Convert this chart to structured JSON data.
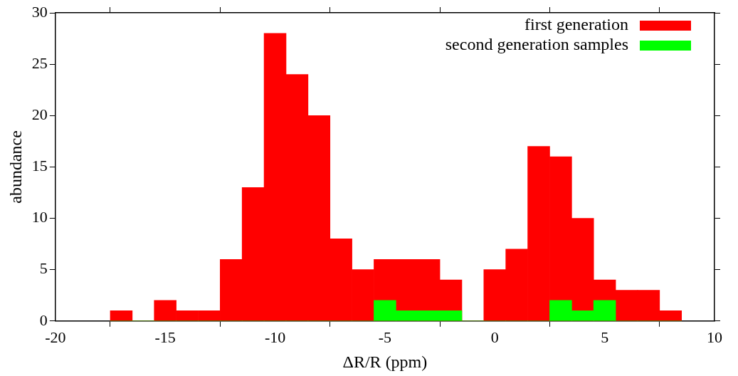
{
  "chart_data": {
    "type": "histogram",
    "xlabel": "ΔR/R (ppm)",
    "ylabel": "abundance",
    "bins": [
      -17.5,
      -16.5,
      -15.5,
      -14.5,
      -13.5,
      -12.5,
      -11.5,
      -10.5,
      -9.5,
      -8.5,
      -7.5,
      -6.5,
      -5.5,
      -4.5,
      -3.5,
      -2.5,
      -1.5,
      -0.5,
      0.5,
      1.5,
      2.5,
      3.5,
      4.5,
      5.5,
      6.5,
      7.5,
      8.5
    ],
    "series": [
      {
        "name": "first generation",
        "color": "#ff0000",
        "values": [
          1,
          0,
          2,
          1,
          1,
          6,
          13,
          28,
          24,
          20,
          8,
          5,
          6,
          6,
          6,
          4,
          0,
          5,
          7,
          17,
          16,
          10,
          4,
          3,
          3,
          1
        ]
      },
      {
        "name": "second generation samples",
        "color": "#00ff00",
        "values": [
          0,
          0,
          0,
          0,
          0,
          0,
          0,
          0,
          0,
          0,
          0,
          0,
          2,
          1,
          1,
          1,
          0,
          0,
          0,
          0,
          2,
          1,
          2,
          0,
          0,
          0
        ]
      }
    ],
    "xlim": [
      -20,
      10
    ],
    "xticks": [
      -20,
      -15,
      -10,
      -5,
      0,
      5,
      10
    ],
    "ylim": [
      0,
      30
    ],
    "yticks": [
      0,
      5,
      10,
      15,
      20,
      25,
      30
    ],
    "grid": false,
    "legend": "top right"
  }
}
